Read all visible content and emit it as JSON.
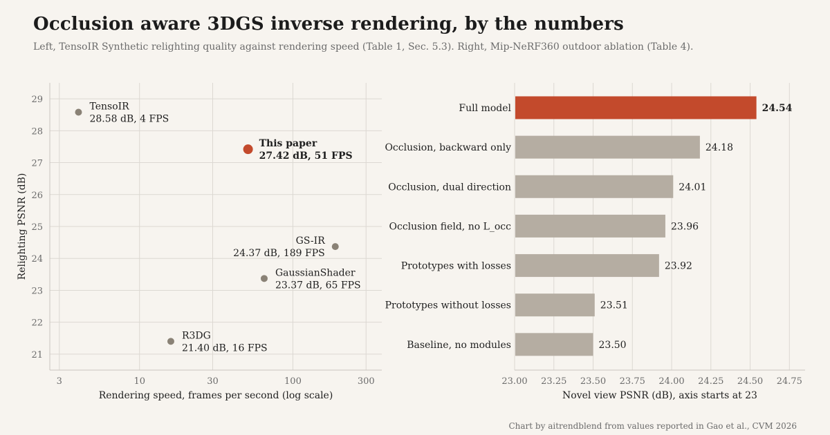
{
  "header": {
    "title": "Occlusion aware 3DGS inverse rendering, by the numbers",
    "subtitle": "Left, TensoIR Synthetic relighting quality against rendering speed (Table 1, Sec. 5.3).  Right, Mip-NeRF360 outdoor ablation (Table 4).",
    "credit": "Chart by aitrendblend from values reported in Gao et al., CVM 2026"
  },
  "colors": {
    "highlight": "#c34a2c",
    "point": "#8a8276",
    "bar": "#b5ada2",
    "grid": "#dcd8d2",
    "axis": "#c9c5bf"
  },
  "chart_data": [
    {
      "type": "scatter",
      "xlabel": "Rendering speed, frames per second (log scale)",
      "ylabel": "Relighting PSNR (dB)",
      "xscale": "log",
      "xlim": [
        2.6,
        380
      ],
      "ylim": [
        20.5,
        29.5
      ],
      "xticks": [
        3,
        10,
        30,
        100,
        300
      ],
      "yticks": [
        21,
        22,
        23,
        24,
        25,
        26,
        27,
        28,
        29
      ],
      "grid": true,
      "points": [
        {
          "name": "TensoIR",
          "x": 4,
          "y": 28.58,
          "label": "28.58 dB, 4 FPS",
          "highlight": false
        },
        {
          "name": "This paper",
          "x": 51,
          "y": 27.42,
          "label": "27.42 dB, 51 FPS",
          "highlight": true
        },
        {
          "name": "GS-IR",
          "x": 189,
          "y": 24.37,
          "label": "24.37 dB, 189 FPS",
          "highlight": false
        },
        {
          "name": "GaussianShader",
          "x": 65,
          "y": 23.37,
          "label": "23.37 dB, 65 FPS",
          "highlight": false
        },
        {
          "name": "R3DG",
          "x": 16,
          "y": 21.4,
          "label": "21.40 dB, 16 FPS",
          "highlight": false
        }
      ]
    },
    {
      "type": "bar",
      "orientation": "horizontal",
      "xlabel": "Novel view PSNR (dB), axis starts at 23",
      "xlim": [
        23.0,
        24.85
      ],
      "xticks": [
        "23.00",
        "23.25",
        "23.50",
        "23.75",
        "24.00",
        "24.25",
        "24.50",
        "24.75"
      ],
      "grid": true,
      "categories": [
        "Full model",
        "Occlusion, backward only",
        "Occlusion, dual direction",
        "Occlusion field, no L_occ",
        "Prototypes with losses",
        "Prototypes without losses",
        "Baseline, no modules"
      ],
      "values": [
        24.54,
        24.18,
        24.01,
        23.96,
        23.92,
        23.51,
        23.5
      ],
      "value_labels": [
        "24.54",
        "24.18",
        "24.01",
        "23.96",
        "23.92",
        "23.51",
        "23.50"
      ],
      "highlight_index": 0
    }
  ]
}
